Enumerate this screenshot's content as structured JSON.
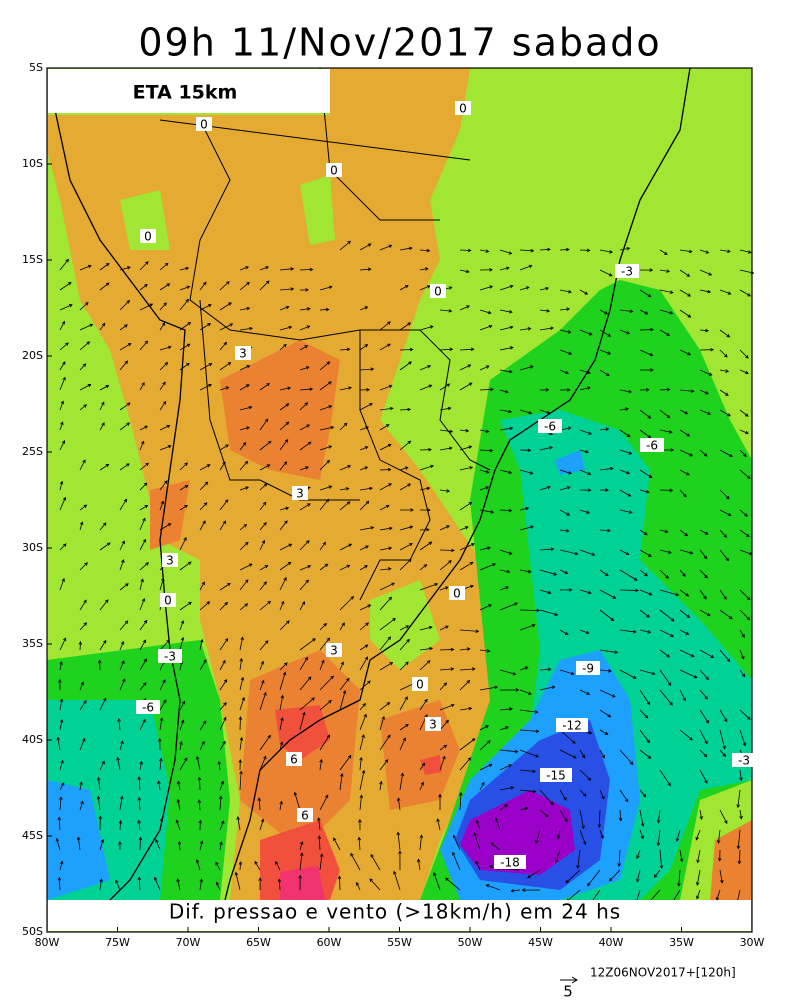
{
  "title": "09h 11/Nov/2017 sabado",
  "model_label": "ETA 15km",
  "caption": "Dif. pressao e vento (>18km/h) em 24 hs",
  "run_info": "12Z06NOV2017+[120h]",
  "vector_scale": "5",
  "lat_ticks": [
    {
      "value": 5,
      "label": "5S"
    },
    {
      "value": 10,
      "label": "10S"
    },
    {
      "value": 15,
      "label": "15S"
    },
    {
      "value": 20,
      "label": "20S"
    },
    {
      "value": 25,
      "label": "25S"
    },
    {
      "value": 30,
      "label": "30S"
    },
    {
      "value": 35,
      "label": "35S"
    },
    {
      "value": 40,
      "label": "40S"
    },
    {
      "value": 45,
      "label": "45S"
    },
    {
      "value": 50,
      "label": "50S"
    }
  ],
  "lon_ticks": [
    {
      "value": 80,
      "label": "80W"
    },
    {
      "value": 75,
      "label": "75W"
    },
    {
      "value": 70,
      "label": "70W"
    },
    {
      "value": 65,
      "label": "65W"
    },
    {
      "value": 60,
      "label": "60W"
    },
    {
      "value": 55,
      "label": "55W"
    },
    {
      "value": 50,
      "label": "50W"
    },
    {
      "value": 45,
      "label": "45W"
    },
    {
      "value": 40,
      "label": "40W"
    },
    {
      "value": 35,
      "label": "35W"
    },
    {
      "value": 30,
      "label": "30W"
    }
  ],
  "contour_labels": [
    "0",
    "0",
    "0",
    "0",
    "0",
    "-3",
    "3",
    "-6",
    "-6",
    "3",
    "3",
    "0",
    "0",
    "-3",
    "3",
    "-9",
    "0",
    "-6",
    "3",
    "-12",
    "6",
    "-15",
    "6",
    "-3",
    "-18"
  ]
}
